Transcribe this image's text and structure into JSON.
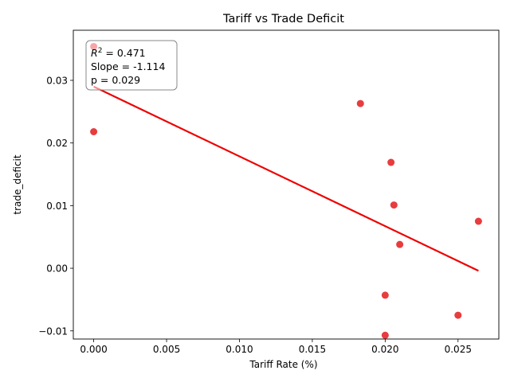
{
  "chart_data": {
    "type": "scatter",
    "title": "Tariff vs Trade Deficit",
    "xlabel": "Tariff Rate (%)",
    "ylabel": "trade_deficit",
    "xlim": [
      -0.0014,
      0.0278
    ],
    "ylim": [
      -0.0113,
      0.038
    ],
    "xticks": [
      0.0,
      0.005,
      0.01,
      0.015,
      0.02,
      0.025
    ],
    "xtick_labels": [
      "0.000",
      "0.005",
      "0.010",
      "0.015",
      "0.020",
      "0.025"
    ],
    "yticks": [
      -0.01,
      0.0,
      0.01,
      0.02,
      0.03
    ],
    "ytick_labels": [
      "−0.01",
      "0.00",
      "0.01",
      "0.02",
      "0.03"
    ],
    "grid": false,
    "series": [
      {
        "color": "#e41a1c",
        "x": [
          0.0,
          0.0,
          0.0183,
          0.0204,
          0.0206,
          0.0264,
          0.021,
          0.02,
          0.025,
          0.02
        ],
        "y": [
          0.0354,
          0.0218,
          0.0263,
          0.0169,
          0.0101,
          0.0075,
          0.0038,
          -0.0043,
          -0.0075,
          -0.0107
        ]
      }
    ],
    "regression": {
      "x": [
        0.0,
        0.0264
      ],
      "y": [
        0.029,
        -0.0004
      ],
      "color": "#ee0000"
    },
    "annotation": {
      "r2_prefix": "R",
      "r2_sup": "2",
      "r2_suffix": " = 0.471",
      "slope": "Slope = -1.114",
      "p": "p = 0.029"
    }
  }
}
